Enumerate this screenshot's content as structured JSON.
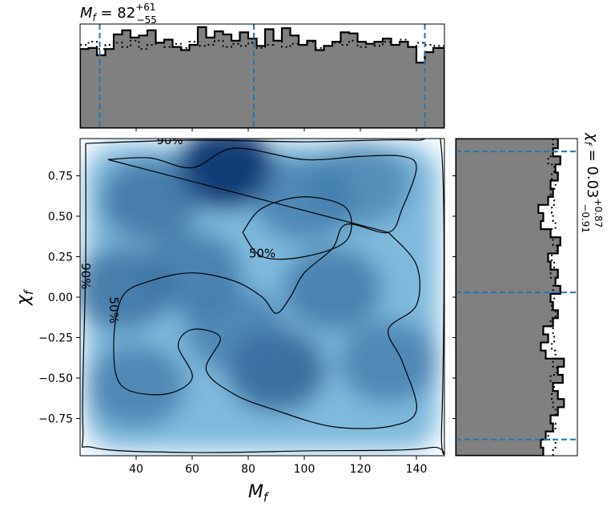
{
  "chart_data": [
    {
      "panel": "marginal-top",
      "type": "histogram",
      "title_var": "M",
      "title_sub": "f",
      "title_value": "82",
      "title_plus": "+61",
      "title_minus": "−55",
      "xlim": [
        20,
        150
      ],
      "quantile_lines_x": [
        27,
        82,
        143
      ],
      "quantile_color": "#1f77b4",
      "fill_color": "#808080",
      "edges_x": [
        20,
        23,
        26,
        29,
        32,
        35,
        38,
        41,
        44,
        47,
        50,
        53,
        56,
        59,
        62,
        65,
        68,
        71,
        74,
        77,
        80,
        83,
        86,
        89,
        92,
        95,
        98,
        101,
        104,
        107,
        110,
        113,
        116,
        119,
        122,
        125,
        128,
        131,
        134,
        137,
        140,
        143,
        146,
        150
      ],
      "counts": [
        0.76,
        0.77,
        0.7,
        0.76,
        0.9,
        0.94,
        0.87,
        0.89,
        0.94,
        0.82,
        0.85,
        0.78,
        0.75,
        0.8,
        0.97,
        0.87,
        0.93,
        0.9,
        0.84,
        0.92,
        0.86,
        0.79,
        0.95,
        0.84,
        0.96,
        0.89,
        0.8,
        0.84,
        0.75,
        0.79,
        0.83,
        0.92,
        0.91,
        0.83,
        0.81,
        0.83,
        0.86,
        0.8,
        0.83,
        0.78,
        0.63,
        0.73,
        0.77
      ],
      "prior_counts": [
        0.8,
        0.83,
        0.76,
        0.8,
        0.82,
        0.78,
        0.84,
        0.76,
        0.8,
        0.82,
        0.78,
        0.81,
        0.77,
        0.83,
        0.79,
        0.8,
        0.84,
        0.78,
        0.81,
        0.79,
        0.82,
        0.77,
        0.8,
        0.84,
        0.78,
        0.81,
        0.8,
        0.83,
        0.77,
        0.79,
        0.82,
        0.8,
        0.84,
        0.78,
        0.81,
        0.79,
        0.83,
        0.8,
        0.85,
        0.78,
        0.82,
        0.8,
        0.79
      ]
    },
    {
      "panel": "joint",
      "type": "heatmap",
      "xlabel_var": "M",
      "xlabel_sub": "f",
      "ylabel_var": "χ",
      "ylabel_sub": "f",
      "xlim": [
        20,
        150
      ],
      "ylim": [
        -0.98,
        0.98
      ],
      "xticks": [
        40,
        60,
        80,
        100,
        120,
        140
      ],
      "yticks": [
        -0.75,
        -0.5,
        -0.25,
        0.0,
        0.25,
        0.5,
        0.75
      ],
      "ytick_labels": [
        "−0.75",
        "−0.50",
        "−0.25",
        "0.00",
        "0.25",
        "0.50",
        "0.75"
      ],
      "colormap": "Blues",
      "density_peaks": [
        {
          "x": 72,
          "y": 0.8,
          "w": 1.0
        },
        {
          "x": 45,
          "y": 0.6,
          "w": 0.55
        },
        {
          "x": 100,
          "y": 0.6,
          "w": 0.45
        },
        {
          "x": 35,
          "y": 0.05,
          "w": 0.55
        },
        {
          "x": 60,
          "y": 0.15,
          "w": 0.5
        },
        {
          "x": 90,
          "y": -0.45,
          "w": 0.65
        },
        {
          "x": 75,
          "y": -0.2,
          "w": 0.45
        },
        {
          "x": 110,
          "y": 0.05,
          "w": 0.5
        },
        {
          "x": 130,
          "y": -0.4,
          "w": 0.45
        },
        {
          "x": 40,
          "y": -0.55,
          "w": 0.45
        },
        {
          "x": 120,
          "y": 0.7,
          "w": 0.4
        }
      ],
      "contours": [
        {
          "label": "90%",
          "label_pos": [
            [
              52,
              0.97
            ],
            [
              22,
              0.13
            ]
          ],
          "points": [
            [
              22,
              0.95
            ],
            [
              60,
              0.97
            ],
            [
              100,
              0.96
            ],
            [
              140,
              0.97
            ],
            [
              149,
              0.9
            ],
            [
              149,
              -0.8
            ],
            [
              145,
              -0.93
            ],
            [
              100,
              -0.95
            ],
            [
              60,
              -0.96
            ],
            [
              25,
              -0.93
            ],
            [
              21,
              -0.8
            ],
            [
              22,
              0.2
            ],
            [
              22,
              0.95
            ]
          ]
        },
        {
          "label": "50%",
          "label_pos": [
            [
              32,
              -0.08
            ]
          ],
          "points": [
            [
              30,
              0.85
            ],
            [
              45,
              0.86
            ],
            [
              60,
              0.8
            ],
            [
              75,
              0.92
            ],
            [
              100,
              0.85
            ],
            [
              120,
              0.87
            ],
            [
              135,
              0.87
            ],
            [
              140,
              0.8
            ],
            [
              135,
              0.55
            ],
            [
              130,
              0.4
            ],
            [
              115,
              0.45
            ],
            [
              110,
              0.3
            ],
            [
              100,
              0.15
            ],
            [
              95,
              0.0
            ],
            [
              90,
              -0.1
            ],
            [
              85,
              0.0
            ],
            [
              75,
              0.1
            ],
            [
              60,
              0.15
            ],
            [
              45,
              0.1
            ],
            [
              35,
              0.0
            ],
            [
              32,
              -0.3
            ],
            [
              35,
              -0.55
            ],
            [
              50,
              -0.6
            ],
            [
              60,
              -0.5
            ],
            [
              55,
              -0.3
            ],
            [
              60,
              -0.2
            ],
            [
              70,
              -0.25
            ],
            [
              65,
              -0.45
            ],
            [
              75,
              -0.6
            ],
            [
              90,
              -0.7
            ],
            [
              110,
              -0.8
            ],
            [
              130,
              -0.8
            ],
            [
              140,
              -0.7
            ],
            [
              135,
              -0.4
            ],
            [
              130,
              -0.2
            ],
            [
              140,
              -0.05
            ],
            [
              140,
              0.2
            ],
            [
              130,
              0.4
            ]
          ]
        },
        {
          "label": "50%",
          "label_pos": [
            [
              85,
              0.27
            ]
          ],
          "points": [
            [
              78,
              0.4
            ],
            [
              85,
              0.55
            ],
            [
              100,
              0.62
            ],
            [
              115,
              0.55
            ],
            [
              115,
              0.35
            ],
            [
              100,
              0.25
            ],
            [
              85,
              0.25
            ],
            [
              78,
              0.4
            ]
          ]
        }
      ]
    },
    {
      "panel": "marginal-right",
      "type": "histogram",
      "orientation": "horizontal",
      "title_var": "χ",
      "title_sub": "f",
      "title_value": "0.03",
      "title_plus": "+0.87",
      "title_minus": "−0.91",
      "ylim": [
        -0.98,
        0.98
      ],
      "quantile_lines_y": [
        -0.88,
        0.03,
        0.9
      ],
      "quantile_color": "#1f77b4",
      "fill_color": "#808080",
      "edges_y": [
        -0.98,
        -0.93,
        -0.88,
        -0.83,
        -0.78,
        -0.73,
        -0.68,
        -0.63,
        -0.58,
        -0.53,
        -0.48,
        -0.43,
        -0.38,
        -0.33,
        -0.28,
        -0.23,
        -0.18,
        -0.13,
        -0.08,
        -0.03,
        0.02,
        0.07,
        0.12,
        0.17,
        0.22,
        0.27,
        0.32,
        0.37,
        0.42,
        0.47,
        0.52,
        0.57,
        0.62,
        0.67,
        0.72,
        0.77,
        0.82,
        0.87,
        0.92,
        0.98
      ],
      "counts": [
        0.72,
        0.7,
        0.74,
        0.8,
        0.78,
        0.84,
        0.89,
        0.84,
        0.8,
        0.88,
        0.84,
        0.89,
        0.74,
        0.7,
        0.76,
        0.72,
        0.8,
        0.84,
        0.8,
        0.78,
        0.86,
        0.82,
        0.84,
        0.78,
        0.76,
        0.84,
        0.86,
        0.78,
        0.7,
        0.72,
        0.68,
        0.76,
        0.8,
        0.78,
        0.84,
        0.82,
        0.86,
        0.8,
        0.84
      ],
      "prior_counts": [
        0.8,
        0.82,
        0.76,
        0.82,
        0.78,
        0.82,
        0.8,
        0.79,
        0.81,
        0.78,
        0.83,
        0.8,
        0.82,
        0.79,
        0.81,
        0.8,
        0.78,
        0.82,
        0.79,
        0.81,
        0.8,
        0.82,
        0.78,
        0.81,
        0.79,
        0.83,
        0.8,
        0.78,
        0.82,
        0.8,
        0.79,
        0.81,
        0.78,
        0.82,
        0.79,
        0.81,
        0.76,
        0.82,
        0.8
      ]
    }
  ]
}
